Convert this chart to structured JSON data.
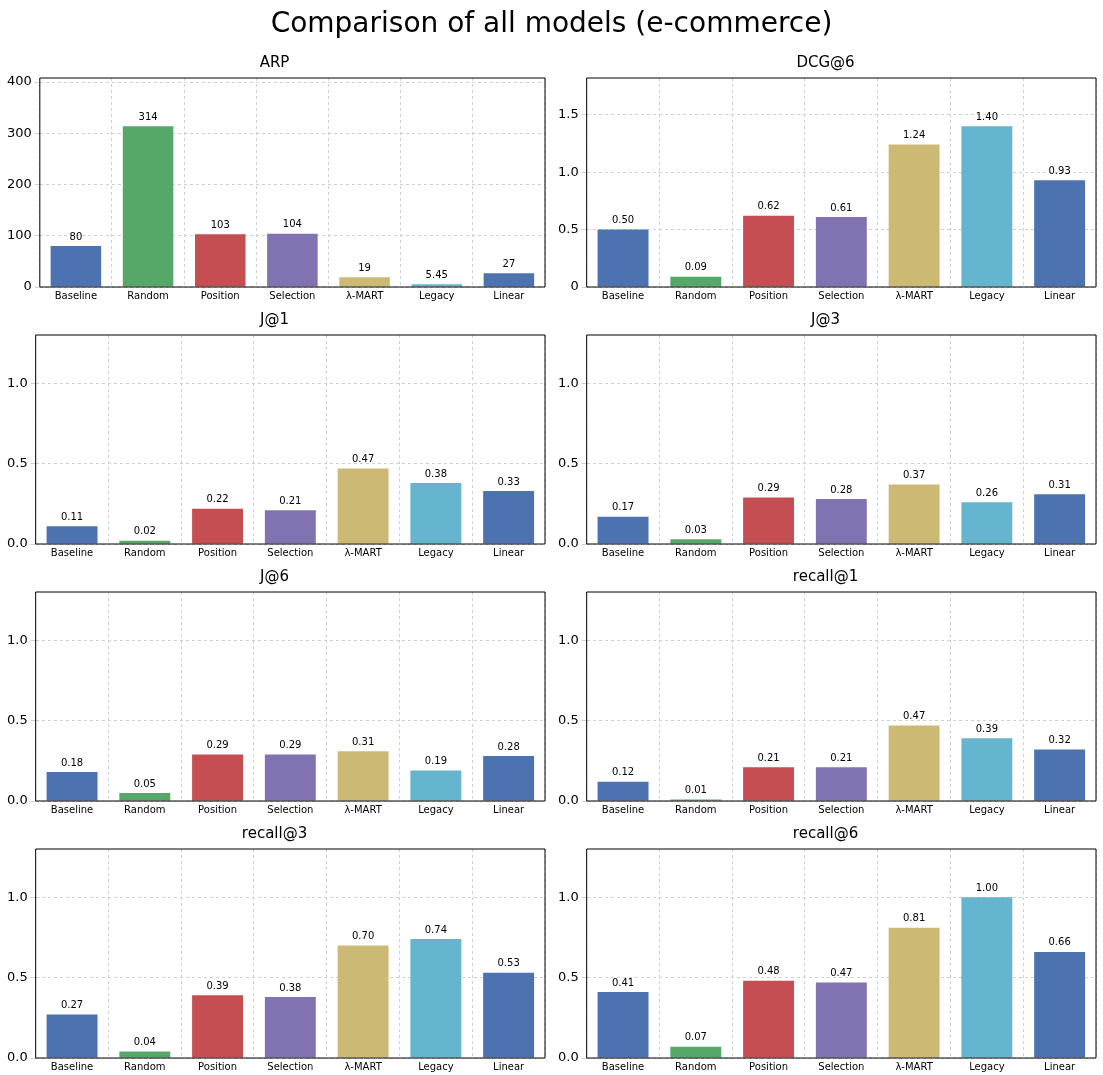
{
  "chart_data": [
    {
      "type": "bar",
      "title": "ARP",
      "annotations": [
        "Comparison of all models (e-commerce)"
      ],
      "categories": [
        "Baseline",
        "Random",
        "Position",
        "Selection",
        "λ-MART",
        "Legacy",
        "Linear"
      ],
      "values": [
        80,
        314,
        103,
        104,
        19,
        5.45,
        27
      ],
      "value_labels": [
        "80",
        "314",
        "103",
        "104",
        "19",
        "5.45",
        "27"
      ],
      "colors": [
        "#4c72b0",
        "#55a868",
        "#c44e52",
        "#8172b2",
        "#ccb974",
        "#64b5cd",
        "#4c72b0"
      ],
      "ylim": [
        0,
        408
      ],
      "yticks": [
        0,
        100,
        200,
        300,
        400
      ],
      "grid": true
    },
    {
      "type": "bar",
      "title": "DCG@6",
      "categories": [
        "Baseline",
        "Random",
        "Position",
        "Selection",
        "λ-MART",
        "Legacy",
        "Linear"
      ],
      "values": [
        0.5,
        0.09,
        0.62,
        0.61,
        1.24,
        1.4,
        0.93
      ],
      "value_labels": [
        "0.50",
        "0.09",
        "0.62",
        "0.61",
        "1.24",
        "1.40",
        "0.93"
      ],
      "colors": [
        "#4c72b0",
        "#55a868",
        "#c44e52",
        "#8172b2",
        "#ccb974",
        "#64b5cd",
        "#4c72b0"
      ],
      "ylim": [
        0,
        1.82
      ],
      "yticks": [
        0,
        {
          "value": 0.5,
          "label": "0.5"
        },
        {
          "value": 1,
          "label": "1.0"
        },
        {
          "value": 1.5,
          "label": "1.5"
        }
      ],
      "grid": true
    },
    {
      "type": "bar",
      "title": "J@1",
      "categories": [
        "Baseline",
        "Random",
        "Position",
        "Selection",
        "λ-MART",
        "Legacy",
        "Linear"
      ],
      "values": [
        0.11,
        0.02,
        0.22,
        0.21,
        0.47,
        0.38,
        0.33
      ],
      "value_labels": [
        "0.11",
        "0.02",
        "0.22",
        "0.21",
        "0.47",
        "0.38",
        "0.33"
      ],
      "colors": [
        "#4c72b0",
        "#55a868",
        "#c44e52",
        "#8172b2",
        "#ccb974",
        "#64b5cd",
        "#4c72b0"
      ],
      "ylim": [
        0,
        1.3
      ],
      "yticks": [
        {
          "value": 0,
          "label": "0.0"
        },
        {
          "value": 0.5,
          "label": "0.5"
        },
        {
          "value": 1,
          "label": "1.0"
        }
      ],
      "grid": true
    },
    {
      "type": "bar",
      "title": "J@3",
      "categories": [
        "Baseline",
        "Random",
        "Position",
        "Selection",
        "λ-MART",
        "Legacy",
        "Linear"
      ],
      "values": [
        0.17,
        0.03,
        0.29,
        0.28,
        0.37,
        0.26,
        0.31
      ],
      "value_labels": [
        "0.17",
        "0.03",
        "0.29",
        "0.28",
        "0.37",
        "0.26",
        "0.31"
      ],
      "colors": [
        "#4c72b0",
        "#55a868",
        "#c44e52",
        "#8172b2",
        "#ccb974",
        "#64b5cd",
        "#4c72b0"
      ],
      "ylim": [
        0,
        1.3
      ],
      "yticks": [
        {
          "value": 0,
          "label": "0.0"
        },
        {
          "value": 0.5,
          "label": "0.5"
        },
        {
          "value": 1,
          "label": "1.0"
        }
      ],
      "grid": true
    },
    {
      "type": "bar",
      "title": "J@6",
      "categories": [
        "Baseline",
        "Random",
        "Position",
        "Selection",
        "λ-MART",
        "Legacy",
        "Linear"
      ],
      "values": [
        0.18,
        0.05,
        0.29,
        0.29,
        0.31,
        0.19,
        0.28
      ],
      "value_labels": [
        "0.18",
        "0.05",
        "0.29",
        "0.29",
        "0.31",
        "0.19",
        "0.28"
      ],
      "colors": [
        "#4c72b0",
        "#55a868",
        "#c44e52",
        "#8172b2",
        "#ccb974",
        "#64b5cd",
        "#4c72b0"
      ],
      "ylim": [
        0,
        1.3
      ],
      "yticks": [
        {
          "value": 0,
          "label": "0.0"
        },
        {
          "value": 0.5,
          "label": "0.5"
        },
        {
          "value": 1,
          "label": "1.0"
        }
      ],
      "grid": true
    },
    {
      "type": "bar",
      "title": "recall@1",
      "categories": [
        "Baseline",
        "Random",
        "Position",
        "Selection",
        "λ-MART",
        "Legacy",
        "Linear"
      ],
      "values": [
        0.12,
        0.01,
        0.21,
        0.21,
        0.47,
        0.39,
        0.32
      ],
      "value_labels": [
        "0.12",
        "0.01",
        "0.21",
        "0.21",
        "0.47",
        "0.39",
        "0.32"
      ],
      "colors": [
        "#4c72b0",
        "#55a868",
        "#c44e52",
        "#8172b2",
        "#ccb974",
        "#64b5cd",
        "#4c72b0"
      ],
      "ylim": [
        0,
        1.3
      ],
      "yticks": [
        {
          "value": 0,
          "label": "0.0"
        },
        {
          "value": 0.5,
          "label": "0.5"
        },
        {
          "value": 1,
          "label": "1.0"
        }
      ],
      "grid": true
    },
    {
      "type": "bar",
      "title": "recall@3",
      "categories": [
        "Baseline",
        "Random",
        "Position",
        "Selection",
        "λ-MART",
        "Legacy",
        "Linear"
      ],
      "values": [
        0.27,
        0.04,
        0.39,
        0.38,
        0.7,
        0.74,
        0.53
      ],
      "value_labels": [
        "0.27",
        "0.04",
        "0.39",
        "0.38",
        "0.70",
        "0.74",
        "0.53"
      ],
      "colors": [
        "#4c72b0",
        "#55a868",
        "#c44e52",
        "#8172b2",
        "#ccb974",
        "#64b5cd",
        "#4c72b0"
      ],
      "ylim": [
        0,
        1.3
      ],
      "yticks": [
        {
          "value": 0,
          "label": "0.0"
        },
        {
          "value": 0.5,
          "label": "0.5"
        },
        {
          "value": 1,
          "label": "1.0"
        }
      ],
      "grid": true
    },
    {
      "type": "bar",
      "title": "recall@6",
      "categories": [
        "Baseline",
        "Random",
        "Position",
        "Selection",
        "λ-MART",
        "Legacy",
        "Linear"
      ],
      "values": [
        0.41,
        0.07,
        0.48,
        0.47,
        0.81,
        1.0,
        0.66
      ],
      "value_labels": [
        "0.41",
        "0.07",
        "0.48",
        "0.47",
        "0.81",
        "1.00",
        "0.66"
      ],
      "colors": [
        "#4c72b0",
        "#55a868",
        "#c44e52",
        "#8172b2",
        "#ccb974",
        "#64b5cd",
        "#4c72b0"
      ],
      "ylim": [
        0,
        1.3
      ],
      "yticks": [
        {
          "value": 0,
          "label": "0.0"
        },
        {
          "value": 0.5,
          "label": "0.5"
        },
        {
          "value": 1,
          "label": "1.0"
        }
      ],
      "grid": true
    }
  ]
}
